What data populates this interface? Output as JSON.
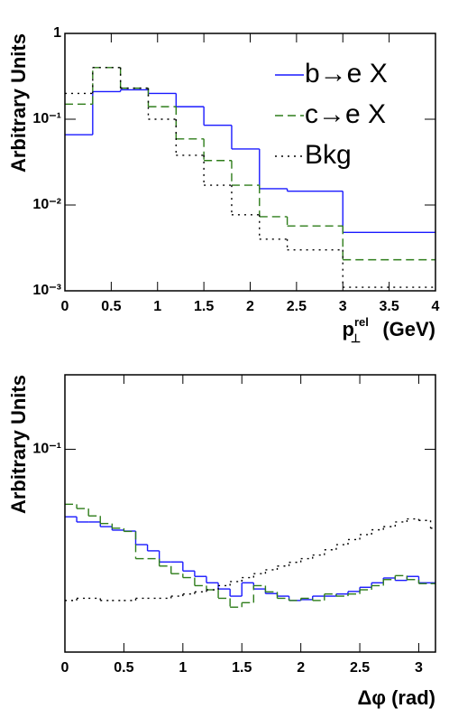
{
  "chart_data": [
    {
      "type": "histogram",
      "histtype": "step",
      "log_y": true,
      "grid": false,
      "legend": "upper right",
      "ylabel": "Arbitrary Units",
      "xlabel": {
        "text": "p",
        "sub": "⊥",
        "sup": "rel",
        "unit": "(GeV)"
      },
      "bins": [
        0,
        0.3,
        0.6,
        0.9,
        1.2,
        1.5,
        1.8,
        2.1,
        2.4,
        3,
        4
      ],
      "xlim": [
        0,
        4
      ],
      "xticks": [
        0,
        0.5,
        1,
        1.5,
        2,
        2.5,
        3,
        3.5,
        4
      ],
      "ylim": [
        0.001,
        1
      ],
      "yticks": [
        {
          "value": 0.001,
          "label": "10⁻³"
        },
        {
          "value": 0.01,
          "label": "10⁻²"
        },
        {
          "value": 0.1,
          "label": "10⁻¹"
        },
        1
      ],
      "series": [
        {
          "name": "b→e X",
          "color": "#1a1aff",
          "linestyle": "solid",
          "values": [
            0.066,
            0.21,
            0.22,
            0.2,
            0.14,
            0.085,
            0.045,
            0.0155,
            0.0145,
            0.0048
          ]
        },
        {
          "name": "c→e X",
          "color": "#2e7d1a",
          "linestyle": "dashed",
          "values": [
            0.15,
            0.4,
            0.23,
            0.14,
            0.059,
            0.033,
            0.017,
            0.0073,
            0.0057,
            0.0023
          ]
        },
        {
          "name": "Bkg",
          "color": "#000000",
          "linestyle": "dotted",
          "values": [
            0.2,
            0.4,
            0.23,
            0.1,
            0.038,
            0.017,
            0.0077,
            0.004,
            0.003,
            0.0011
          ]
        }
      ]
    },
    {
      "type": "histogram",
      "histtype": "step",
      "log_y": true,
      "grid": false,
      "ylabel": "Arbitrary Units",
      "xlabel": "Δφ (rad)",
      "bins": [
        0,
        0.1,
        0.2,
        0.3,
        0.4,
        0.5,
        0.6,
        0.7,
        0.8,
        0.9,
        1,
        1.1,
        1.2,
        1.3,
        1.4,
        1.5,
        1.6,
        1.7,
        1.8,
        1.9,
        2,
        2.1,
        2.2,
        2.3,
        2.4,
        2.5,
        2.6,
        2.7,
        2.8,
        2.9,
        3,
        3.1,
        3.1416
      ],
      "xlim": [
        0,
        3.1416
      ],
      "xticks": [
        0,
        0.5,
        1,
        1.5,
        2,
        2.5,
        3
      ],
      "ylim": [
        0.04,
        0.14
      ],
      "yticks": [
        {
          "value": 0.1,
          "label": "10⁻¹"
        }
      ],
      "series": [
        {
          "color": "#1a1aff",
          "linestyle": "solid",
          "values": [
            0.0737,
            0.072,
            0.072,
            0.0705,
            0.0694,
            0.0691,
            0.065,
            0.0632,
            0.0601,
            0.0601,
            0.0577,
            0.0563,
            0.0547,
            0.0532,
            0.0515,
            0.0547,
            0.0532,
            0.0521,
            0.0515,
            0.0505,
            0.0507,
            0.0515,
            0.0515,
            0.052,
            0.0526,
            0.0536,
            0.0547,
            0.0559,
            0.0553,
            0.0563,
            0.0547,
            0.0547
          ]
        },
        {
          "color": "#2e7d1a",
          "linestyle": "dashed",
          "values": [
            0.078,
            0.0765,
            0.074,
            0.0715,
            0.07,
            0.069,
            0.061,
            0.061,
            0.059,
            0.057,
            0.056,
            0.054,
            0.053,
            0.051,
            0.049,
            0.05,
            0.054,
            0.0525,
            0.051,
            0.0505,
            0.051,
            0.0505,
            0.052,
            0.0515,
            0.052,
            0.053,
            0.054,
            0.0555,
            0.0565,
            0.0555,
            0.0545,
            0.0545
          ]
        },
        {
          "color": "#000000",
          "linestyle": "dotted",
          "values": [
            0.0505,
            0.051,
            0.051,
            0.0505,
            0.0505,
            0.0505,
            0.051,
            0.051,
            0.051,
            0.0515,
            0.052,
            0.0525,
            0.053,
            0.054,
            0.055,
            0.056,
            0.057,
            0.058,
            0.059,
            0.06,
            0.061,
            0.062,
            0.0635,
            0.065,
            0.0665,
            0.068,
            0.0695,
            0.0705,
            0.072,
            0.073,
            0.0725,
            0.07
          ]
        }
      ]
    }
  ]
}
